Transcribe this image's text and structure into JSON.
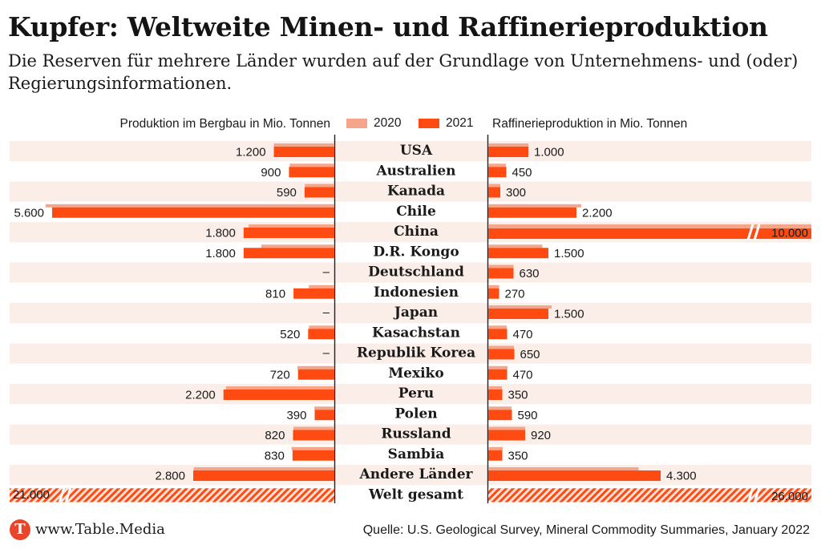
{
  "title": "Kupfer: Weltweite Minen- und Raffinerieproduktion",
  "subtitle": "Die Reserven für mehrere Länder wurden auf der Grundlage von Unternehmens- und (oder) Regierungsinformationen.",
  "footer": {
    "logo_letter": "T",
    "site": "www.Table.Media",
    "source": "Quelle: U.S. Geological Survey, Mineral Commodity Summaries, January 2022"
  },
  "colors": {
    "y2020": "#f4a58a",
    "y2021": "#ff4a12",
    "row_band": "#fbeee8",
    "hatch": "#ff4a12"
  },
  "chart_data": {
    "type": "bar",
    "layout": "butterfly",
    "unit": "Mio. Tonnen",
    "left_axis_label": "Produktion im Bergbau in Mio. Tonnen",
    "right_axis_label": "Raffinerieproduktion in Mio. Tonnen",
    "left_max": 5600,
    "right_max": 2200,
    "legend": [
      {
        "name": "2020",
        "color": "#f4a58a"
      },
      {
        "name": "2021",
        "color": "#ff4a12"
      }
    ],
    "categories": [
      "USA",
      "Australien",
      "Kanada",
      "Chile",
      "China",
      "D.R. Kongo",
      "Deutschland",
      "Indonesien",
      "Japan",
      "Kasachstan",
      "Republik Korea",
      "Mexiko",
      "Peru",
      "Polen",
      "Russland",
      "Sambia",
      "Andere Länder",
      "Welt gesamt"
    ],
    "mining": {
      "2020": [
        1200,
        885,
        585,
        5730,
        1700,
        1450,
        null,
        505,
        null,
        500,
        null,
        733,
        2150,
        395,
        810,
        850,
        2790,
        20600
      ],
      "2021": [
        1200,
        900,
        590,
        5600,
        1800,
        1800,
        null,
        810,
        null,
        520,
        null,
        720,
        2200,
        390,
        820,
        830,
        2800,
        21000
      ],
      "labels": [
        "1.200",
        "900",
        "590",
        "5.600",
        "1.800",
        "1.800",
        "–",
        "810",
        "–",
        "520",
        "–",
        "720",
        "2.200",
        "390",
        "820",
        "830",
        "2.800",
        "21.000"
      ]
    },
    "refinery": {
      "2020": [
        1000,
        440,
        300,
        2320,
        10000,
        1350,
        630,
        270,
        1580,
        460,
        640,
        480,
        340,
        580,
        920,
        360,
        3750,
        25000
      ],
      "2021": [
        1000,
        450,
        300,
        2200,
        10000,
        1500,
        630,
        270,
        1500,
        470,
        650,
        470,
        350,
        590,
        920,
        350,
        4300,
        26000
      ],
      "labels": [
        "1.000",
        "450",
        "300",
        "2.200",
        "10.000",
        "1.500",
        "630",
        "270",
        "1.500",
        "470",
        "650",
        "470",
        "350",
        "590",
        "920",
        "350",
        "4.300",
        "26.000"
      ]
    },
    "clipped": {
      "mining": [
        "Welt gesamt"
      ],
      "refinery": [
        "China",
        "Welt gesamt"
      ]
    }
  }
}
